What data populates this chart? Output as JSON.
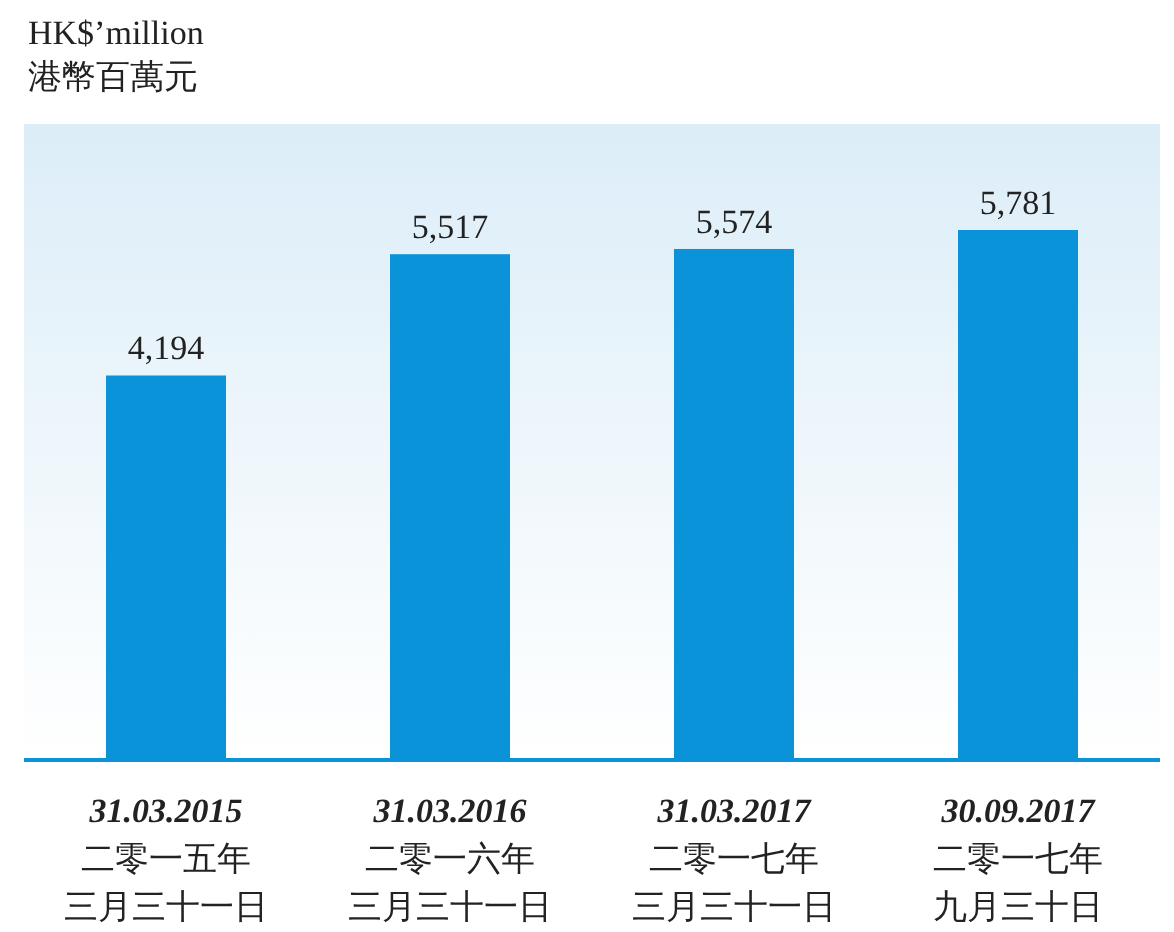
{
  "chart_data": {
    "type": "bar",
    "ylabel": "HK$’million\n港幣百萬元",
    "categories": [
      "31.03.2015\n二零一五年三月三十一日",
      "31.03.2016\n二零一六年三月三十一日",
      "31.03.2017\n二零一七年三月三十一日",
      "30.09.2017\n二零一七年九月三十日"
    ],
    "values": [
      4194,
      5517,
      5574,
      5781
    ],
    "color": "#0a93d8",
    "value_labels": [
      "4,194",
      "5,517",
      "5,574",
      "5,781"
    ]
  }
}
